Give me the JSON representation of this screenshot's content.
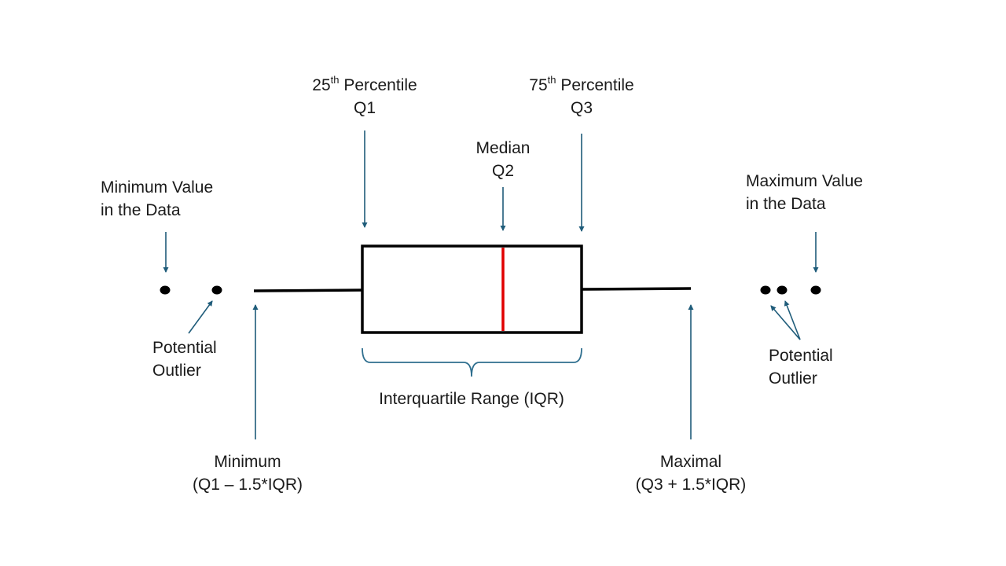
{
  "labels": {
    "q1": {
      "number": "25",
      "suffix": "th",
      "word": "Percentile",
      "name": "Q1"
    },
    "q3": {
      "number": "75",
      "suffix": "th",
      "word": "Percentile",
      "name": "Q3"
    },
    "median": {
      "line1": "Median",
      "line2": "Q2"
    },
    "min_value": {
      "line1": "Minimum Value",
      "line2": "in the Data"
    },
    "max_value": {
      "line1": "Maximum Value",
      "line2": "in the Data"
    },
    "outlier_left": {
      "line1": "Potential",
      "line2": "Outlier"
    },
    "outlier_right": {
      "line1": "Potential",
      "line2": "Outlier"
    },
    "iqr": "Interquartile Range (IQR)",
    "minimum": {
      "line1": "Minimum",
      "line2": "(Q1 – 1.5*IQR)"
    },
    "maximal": {
      "line1": "Maximal",
      "line2": "(Q3 + 1.5*IQR)"
    }
  },
  "colors": {
    "arrow": "#1f5c7a",
    "box": "#000000",
    "median_line": "#e00000",
    "brace": "#2f6f8f",
    "text": "#1a1a1a"
  }
}
